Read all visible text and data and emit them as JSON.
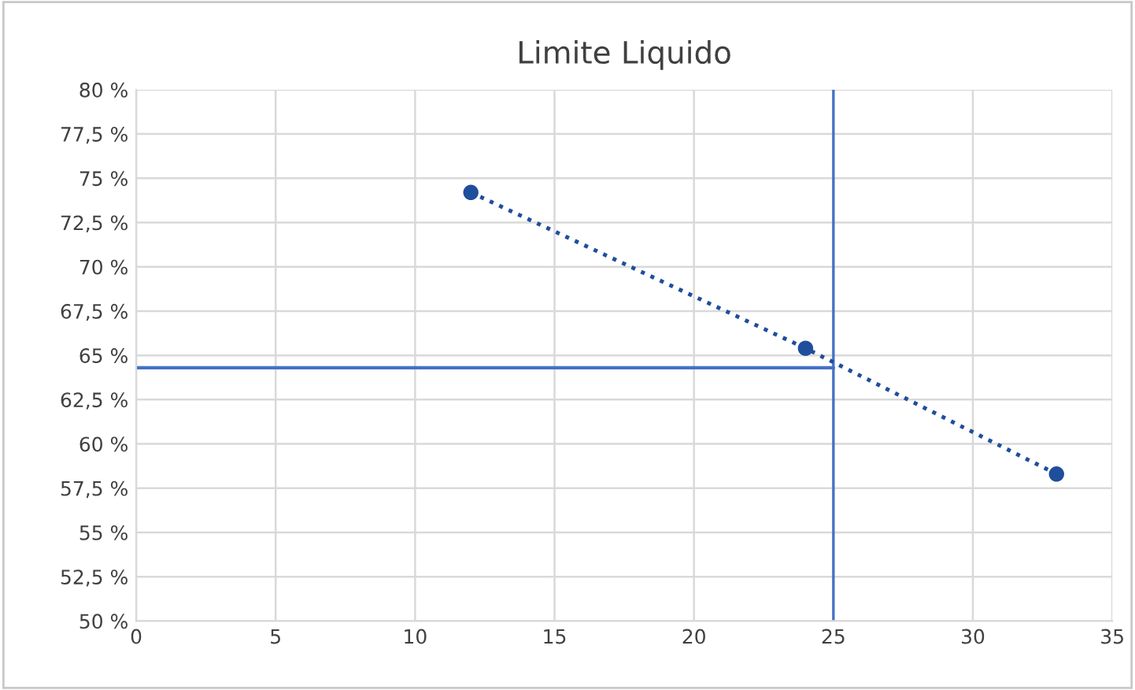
{
  "chart_data": {
    "type": "line",
    "title": "Limite Liquido",
    "x": [
      12,
      24,
      33
    ],
    "series": [
      {
        "color": "#1f4e9c",
        "values": [
          74.2,
          65.4,
          58.3
        ],
        "marker": "circle",
        "line_style": "dotted"
      }
    ],
    "xlim": [
      0,
      35
    ],
    "xticks": [
      0,
      5,
      10,
      15,
      20,
      25,
      30,
      35
    ],
    "ylim": [
      50,
      80
    ],
    "yticks": [
      {
        "value": 50,
        "label": "50 %"
      },
      {
        "value": 52.5,
        "label": "52,5 %"
      },
      {
        "value": 55,
        "label": "55 %"
      },
      {
        "value": 57.5,
        "label": "57,5 %"
      },
      {
        "value": 60,
        "label": "60 %"
      },
      {
        "value": 62.5,
        "label": "62,5 %"
      },
      {
        "value": 65,
        "label": "65 %"
      },
      {
        "value": 67.5,
        "label": "67,5 %"
      },
      {
        "value": 70,
        "label": "70 %"
      },
      {
        "value": 72.5,
        "label": "72,5 %"
      },
      {
        "value": 75,
        "label": "75 %"
      },
      {
        "value": 77.5,
        "label": "77,5 %"
      },
      {
        "value": 80,
        "label": "80 %"
      }
    ],
    "ref_lines": [
      {
        "axis": "x",
        "value": 25,
        "color": "#4472c4"
      },
      {
        "axis": "y",
        "value": 64.3,
        "color": "#4472c4"
      }
    ],
    "grid": true,
    "legend": false
  }
}
